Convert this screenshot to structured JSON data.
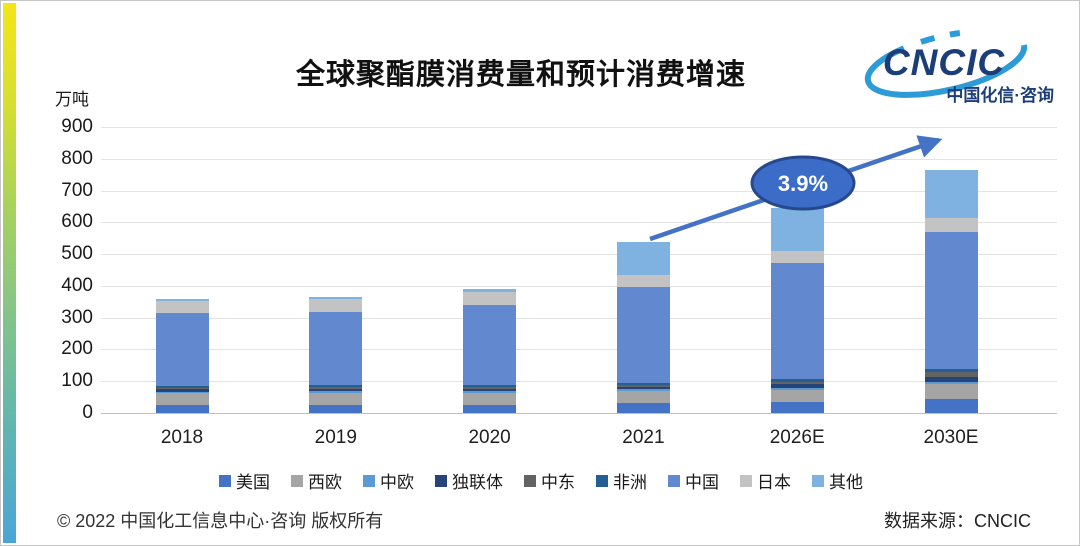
{
  "page": {
    "title": "全球聚酯膜消费量和预计消费增速",
    "y_unit": "万吨",
    "footer_left": "© 2022 中国化工信息中心·咨询 版权所有",
    "footer_right": "数据来源：CNCIC",
    "logo": {
      "text": "CNCIC",
      "subtitle": "中国化信·咨询",
      "text_color": "#1C3E78",
      "swoosh_color": "#2E9BD9"
    }
  },
  "chart_data": {
    "type": "bar",
    "stacked": true,
    "title": "全球聚酯膜消费量和预计消费增速",
    "ylabel": "万吨",
    "ylim": [
      0,
      900
    ],
    "ytick_step": 100,
    "grid": true,
    "legend_position": "bottom",
    "categories": [
      "2018",
      "2019",
      "2020",
      "2021",
      "2026E",
      "2030E"
    ],
    "series": [
      {
        "name": "美国",
        "color": "#4472C4",
        "values": [
          25,
          26,
          25,
          32,
          35,
          45
        ]
      },
      {
        "name": "西欧",
        "color": "#A5A5A5",
        "values": [
          38,
          38,
          39,
          37,
          37,
          47
        ]
      },
      {
        "name": "中欧",
        "color": "#5B9BD5",
        "values": [
          4,
          4,
          4,
          5,
          6,
          6
        ]
      },
      {
        "name": "独联体",
        "color": "#264478",
        "values": [
          8,
          8,
          8,
          8,
          12,
          16
        ]
      },
      {
        "name": "中东",
        "color": "#636363",
        "values": [
          5,
          5,
          5,
          5,
          8,
          16
        ]
      },
      {
        "name": "非洲",
        "color": "#255E91",
        "values": [
          6,
          6,
          6,
          8,
          8,
          9
        ]
      },
      {
        "name": "中国",
        "color": "#6289D0",
        "values": [
          230,
          232,
          252,
          300,
          365,
          430
        ]
      },
      {
        "name": "日本",
        "color": "#C3C3C3",
        "values": [
          38,
          40,
          42,
          38,
          40,
          45
        ]
      },
      {
        "name": "其他",
        "color": "#7FB1E1",
        "values": [
          4,
          6,
          8,
          105,
          135,
          150
        ]
      }
    ],
    "annotation": {
      "label": "3.9%",
      "meaning": "预计消费增速",
      "ellipse_fill": "#3A6CC8",
      "ellipse_stroke": "#27488C",
      "arrow_color": "#4472C4"
    }
  }
}
